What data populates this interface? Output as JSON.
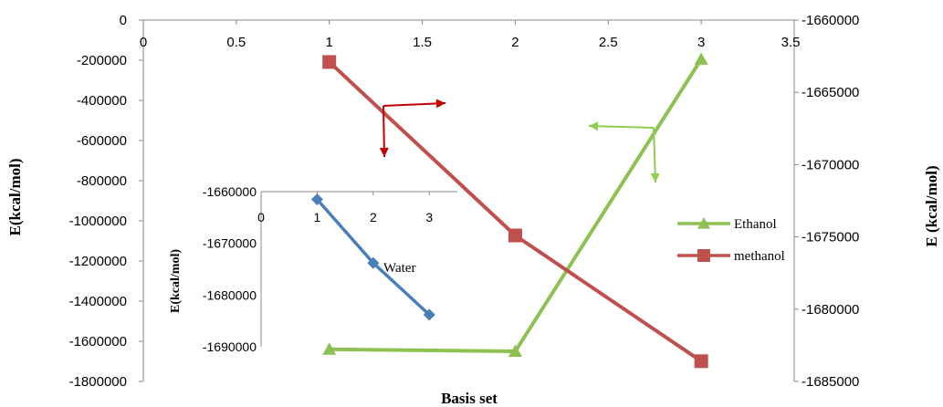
{
  "chart_data": [
    {
      "type": "line",
      "xlabel": "Basis set",
      "ylabel_left": "E(kcal/mol)",
      "ylabel_right": "E (kcal/mol)",
      "xlim": [
        0,
        3.5
      ],
      "xticks": [
        "0",
        "0.5",
        "1",
        "1.5",
        "2",
        "2.5",
        "3",
        "3.5"
      ],
      "ylim_left": [
        -1800000,
        0
      ],
      "yticks_left": [
        "0",
        "-200000",
        "-400000",
        "-600000",
        "-800000",
        "-1000000",
        "-1200000",
        "-1400000",
        "-1600000",
        "-1800000"
      ],
      "ylim_right": [
        -1685000,
        -1660000
      ],
      "yticks_right": [
        "-1660000",
        "-1665000",
        "-1670000",
        "-1675000",
        "-1680000",
        "-1685000"
      ],
      "grid": false,
      "legend_position": "right",
      "series": [
        {
          "name": "Ethanol",
          "axis": "left",
          "color": "#8fc152",
          "marker": "triangle",
          "x": [
            1,
            2,
            3
          ],
          "y": [
            -1640000,
            -1650000,
            -195000
          ]
        },
        {
          "name": "methanol",
          "axis": "right",
          "color": "#c0504d",
          "marker": "square",
          "x": [
            1,
            2,
            3
          ],
          "y": [
            -1662900,
            -1674900,
            -1683600
          ]
        }
      ],
      "annotations": [
        {
          "type": "arrow-pair",
          "color": "#c00000",
          "points_to": "left-axis-down, right-axis-right"
        },
        {
          "type": "arrow-pair",
          "color": "#8fce4c",
          "points_to": "left-axis-left, down"
        }
      ]
    },
    {
      "type": "line",
      "inset": true,
      "ylabel": "E(kcal/mol)",
      "xlim": [
        0,
        3.5
      ],
      "xticks": [
        "0",
        "1",
        "2",
        "3"
      ],
      "ylim": [
        -1690000,
        -1660000
      ],
      "yticks": [
        "-1660000",
        "-1670000",
        "-1680000",
        "-1690000"
      ],
      "series": [
        {
          "name": "Water",
          "color": "#4a7ebb",
          "marker": "diamond",
          "x": [
            1,
            2,
            3
          ],
          "y": [
            -1661500,
            -1673800,
            -1683800
          ]
        }
      ]
    }
  ]
}
